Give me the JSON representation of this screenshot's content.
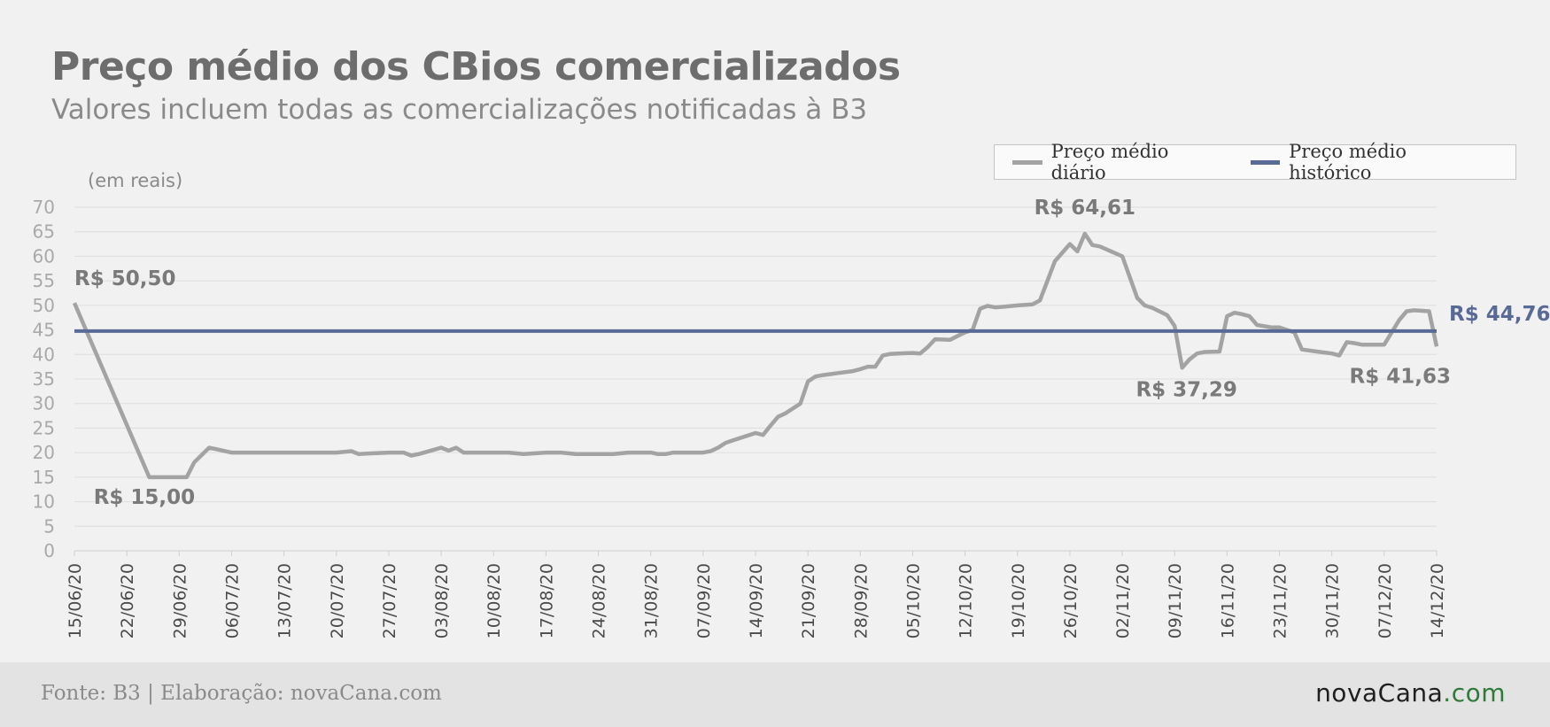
{
  "header": {
    "title": "Preço médio dos CBios comercializados",
    "subtitle": "Valores incluem todas as comercializações notificadas à B3"
  },
  "legend": {
    "daily": "Preço médio diário",
    "historical": "Preço médio histórico"
  },
  "unit_label": "(em reais)",
  "footer": {
    "source": "Fonte: B3 | Elaboração: novaCana.com",
    "logo_main": "novaCana",
    "logo_dot": ".",
    "logo_tld": "com"
  },
  "colors": {
    "daily_line": "#a3a3a3",
    "historical_line": "#5a6a96",
    "annotation": "#7a7a7a",
    "historical_label": "#5a6a96"
  },
  "chart_data": {
    "type": "line",
    "ylim": [
      0,
      70
    ],
    "yticks": [
      0,
      5,
      10,
      15,
      20,
      25,
      30,
      35,
      40,
      45,
      50,
      55,
      60,
      65,
      70
    ],
    "grid": true,
    "legend_placement": "top-right",
    "x_tick_labels": [
      "15/06/20",
      "22/06/20",
      "29/06/20",
      "06/07/20",
      "13/07/20",
      "20/07/20",
      "27/07/20",
      "03/08/20",
      "10/08/20",
      "17/08/20",
      "24/08/20",
      "31/08/20",
      "07/09/20",
      "14/09/20",
      "21/09/20",
      "28/09/20",
      "05/10/20",
      "12/10/20",
      "19/10/20",
      "26/10/20",
      "02/11/20",
      "09/11/20",
      "16/11/20",
      "23/11/20",
      "30/11/20",
      "07/12/20",
      "14/12/20"
    ],
    "series": [
      {
        "name": "Preço médio diário",
        "x": [
          "15/06/20",
          "25/06/20",
          "26/06/20",
          "27/06/20",
          "28/06/20",
          "29/06/20",
          "30/06/20",
          "01/07/20",
          "02/07/20",
          "03/07/20",
          "04/07/20",
          "06/07/20",
          "08/07/20",
          "10/07/20",
          "13/07/20",
          "15/07/20",
          "17/07/20",
          "20/07/20",
          "22/07/20",
          "23/07/20",
          "24/07/20",
          "27/07/20",
          "29/07/20",
          "30/07/20",
          "31/07/20",
          "03/08/20",
          "04/08/20",
          "05/08/20",
          "06/08/20",
          "08/08/20",
          "10/08/20",
          "12/08/20",
          "14/08/20",
          "17/08/20",
          "19/08/20",
          "21/08/20",
          "24/08/20",
          "26/08/20",
          "28/08/20",
          "29/08/20",
          "31/08/20",
          "01/09/20",
          "02/09/20",
          "03/09/20",
          "05/09/20",
          "07/09/20",
          "08/09/20",
          "09/09/20",
          "10/09/20",
          "11/09/20",
          "12/09/20",
          "14/09/20",
          "15/09/20",
          "16/09/20",
          "17/09/20",
          "18/09/20",
          "20/09/20",
          "21/09/20",
          "22/09/20",
          "23/09/20",
          "24/09/20",
          "25/09/20",
          "27/09/20",
          "28/09/20",
          "29/09/20",
          "30/09/20",
          "01/10/20",
          "02/10/20",
          "03/10/20",
          "05/10/20",
          "06/10/20",
          "07/10/20",
          "08/10/20",
          "10/10/20",
          "12/10/20",
          "13/10/20",
          "14/10/20",
          "15/10/20",
          "16/10/20",
          "17/10/20",
          "19/10/20",
          "21/10/20",
          "22/10/20",
          "23/10/20",
          "24/10/20",
          "26/10/20",
          "27/10/20",
          "28/10/20",
          "29/10/20",
          "30/10/20",
          "02/11/20",
          "04/11/20",
          "05/11/20",
          "06/11/20",
          "08/11/20",
          "09/11/20",
          "10/11/20",
          "11/11/20",
          "12/11/20",
          "13/11/20",
          "15/11/20",
          "16/11/20",
          "17/11/20",
          "18/11/20",
          "19/11/20",
          "20/11/20",
          "22/11/20",
          "23/11/20",
          "24/11/20",
          "25/11/20",
          "26/11/20",
          "28/11/20",
          "30/11/20",
          "01/12/20",
          "02/12/20",
          "03/12/20",
          "04/12/20",
          "05/12/20",
          "07/12/20",
          "08/12/20",
          "09/12/20",
          "10/12/20",
          "11/12/20",
          "13/12/20",
          "14/12/20"
        ],
        "values": [
          50.5,
          15.0,
          15.0,
          15.0,
          15.0,
          15.0,
          15.0,
          18.0,
          19.5,
          21.0,
          20.7,
          20.0,
          20.0,
          20.0,
          20.0,
          20.0,
          20.0,
          20.0,
          20.3,
          19.7,
          19.8,
          20.0,
          20.0,
          19.4,
          19.7,
          21.0,
          20.4,
          21.0,
          20.0,
          20.0,
          20.0,
          20.0,
          19.7,
          20.0,
          20.0,
          19.7,
          19.7,
          19.7,
          20.0,
          20.0,
          20.0,
          19.7,
          19.7,
          20.0,
          20.0,
          20.0,
          20.3,
          21.0,
          22.0,
          22.5,
          23.0,
          24.0,
          23.6,
          25.5,
          27.3,
          28.0,
          30.0,
          34.5,
          35.5,
          35.8,
          36.0,
          36.2,
          36.6,
          37.0,
          37.5,
          37.5,
          39.8,
          40.1,
          40.2,
          40.3,
          40.2,
          41.5,
          43.1,
          43.0,
          44.5,
          45.0,
          49.3,
          49.9,
          49.6,
          49.7,
          50.0,
          50.2,
          51.0,
          55.0,
          59.0,
          62.5,
          61.0,
          64.61,
          62.3,
          62.0,
          60.0,
          51.5,
          50.0,
          49.5,
          48.0,
          45.8,
          37.29,
          39.0,
          40.2,
          40.5,
          40.6,
          47.8,
          48.5,
          48.2,
          47.8,
          46.0,
          45.5,
          45.5,
          45.0,
          44.5,
          41.0,
          40.6,
          40.2,
          39.8,
          42.5,
          42.3,
          42.0,
          42.0,
          42.0,
          44.5,
          47.0,
          48.8,
          49.0,
          48.8,
          41.63
        ]
      },
      {
        "name": "Preço médio histórico",
        "x": [
          "15/06/20",
          "14/12/20"
        ],
        "values": [
          44.76,
          44.76
        ]
      }
    ],
    "annotations": [
      {
        "text": "R$ 50,50",
        "x": "15/06/20",
        "y": 50.5
      },
      {
        "text": "R$ 15,00",
        "x": "26/06/20",
        "y": 15.0
      },
      {
        "text": "R$ 64,61",
        "x": "28/10/20",
        "y": 64.61
      },
      {
        "text": "R$ 37,29",
        "x": "10/11/20",
        "y": 37.29
      },
      {
        "text": "R$ 41,63",
        "x": "14/12/20",
        "y": 41.63
      },
      {
        "text": "R$ 44,76",
        "x": "14/12/20",
        "y": 44.76
      }
    ]
  }
}
